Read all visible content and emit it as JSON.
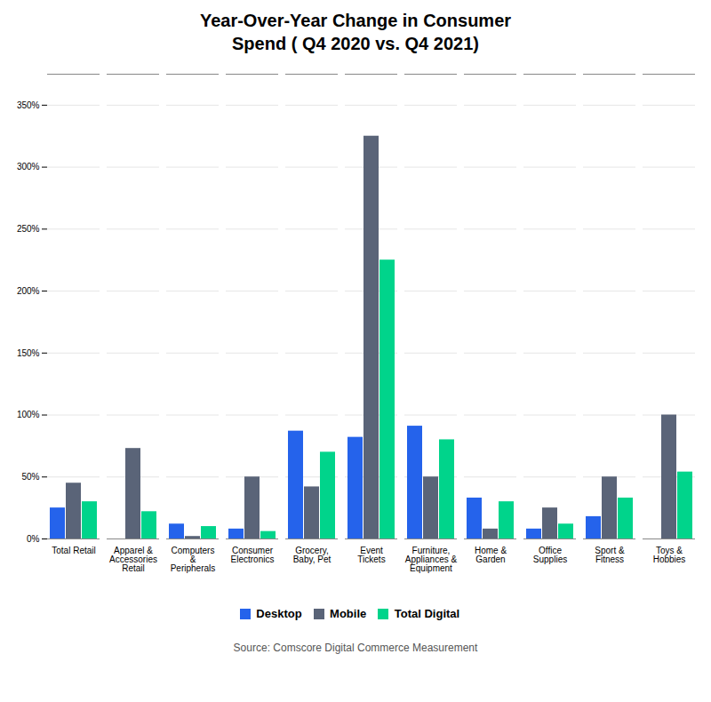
{
  "chart_data": {
    "type": "bar",
    "title": "Year-Over-Year Change in Consumer\nSpend ( Q4 2020 vs. Q4 2021)",
    "categories": [
      "Total Retail",
      "Apparel &\nAccessories\nRetail",
      "Computers\n&\nPeripherals",
      "Consumer\nElectronics",
      "Grocery,\nBaby, Pet",
      "Event\nTickets",
      "Furniture,\nAppliances &\nEquipment",
      "Home &\nGarden",
      "Office\nSupplies",
      "Sport &\nFitness",
      "Toys &\nHobbies"
    ],
    "series": [
      {
        "name": "Desktop",
        "color": "#2563EB",
        "values": [
          25,
          0,
          12,
          8,
          87,
          82,
          91,
          33,
          8,
          18,
          0
        ]
      },
      {
        "name": "Mobile",
        "color": "#5A6478",
        "values": [
          45,
          73,
          2,
          50,
          42,
          325,
          50,
          8,
          25,
          50,
          100
        ]
      },
      {
        "name": "Total Digital",
        "color": "#00D48B",
        "values": [
          30,
          22,
          10,
          6,
          70,
          225,
          80,
          30,
          12,
          33,
          54
        ]
      }
    ],
    "ylim": [
      0,
      375
    ],
    "yticks": [
      {
        "value": 0,
        "label": "0%"
      },
      {
        "value": 50,
        "label": "50%"
      },
      {
        "value": 100,
        "label": "100%"
      },
      {
        "value": 150,
        "label": "150%"
      },
      {
        "value": 200,
        "label": "200%"
      },
      {
        "value": 250,
        "label": "250%"
      },
      {
        "value": 300,
        "label": "300%"
      },
      {
        "value": 350,
        "label": "350%"
      }
    ],
    "grid": true,
    "legend": "bottom",
    "source": "Source: Comscore Digital Commerce Measurement"
  }
}
